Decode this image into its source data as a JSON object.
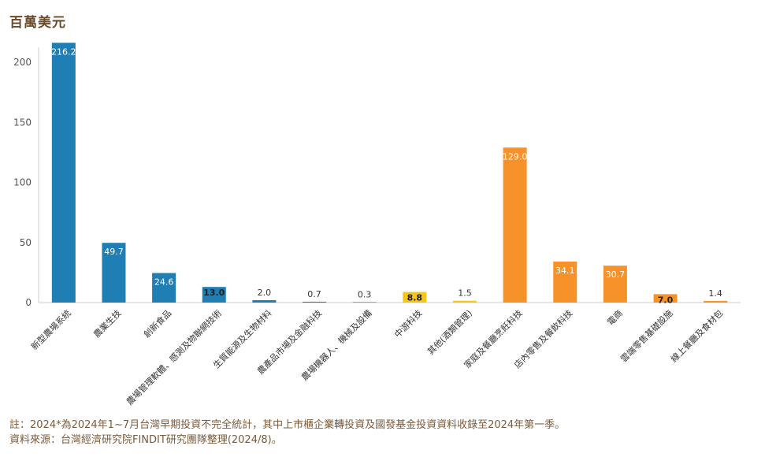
{
  "chart_data": {
    "type": "bar",
    "unit_label": "百萬美元",
    "categories": [
      "新型農場系統",
      "農業生技",
      "創新食品",
      "農場管理軟體、感測及物聯網技術",
      "生質能源及生物材料",
      "農產品市場及金融科技",
      "農場機器人、機械及設備",
      "中游科技",
      "其他(酒類管理)",
      "家庭及餐廳烹飪科技",
      "店內零售及餐飲科技",
      "電商",
      "雲端零售基礎設施",
      "線上餐廳及食材包"
    ],
    "values": [
      216.2,
      49.7,
      24.6,
      13.0,
      2.0,
      0.7,
      0.3,
      8.8,
      1.5,
      129.0,
      34.1,
      30.7,
      7.0,
      1.4
    ],
    "value_labels": [
      "216.2",
      "49.7",
      "24.6",
      "13.0",
      "2.0",
      "0.7",
      "0.3",
      "8.8",
      "1.5",
      "129.0",
      "34.1",
      "30.7",
      "7.0",
      "1.4"
    ],
    "colors": [
      "#1f7fb4",
      "#1f7fb4",
      "#1f7fb4",
      "#1f7fb4",
      "#1f7fb4",
      "#1f7fb4",
      "#1f7fb4",
      "#f5c518",
      "#f5c518",
      "#f7922b",
      "#f7922b",
      "#f7922b",
      "#f7922b",
      "#f7922b"
    ],
    "ylim": [
      0,
      220
    ],
    "yticks": [
      0,
      50,
      100,
      150,
      200
    ],
    "grid": false
  },
  "notes": {
    "line1": "註：2024*為2024年1~7月台灣早期投資不完全統計，其中上市櫃企業轉投資及國發基金投資資料收錄至2024年第一季。",
    "line2": "資料來源：台灣經濟研究院FINDIT研究團隊整理(2024/8)。"
  }
}
